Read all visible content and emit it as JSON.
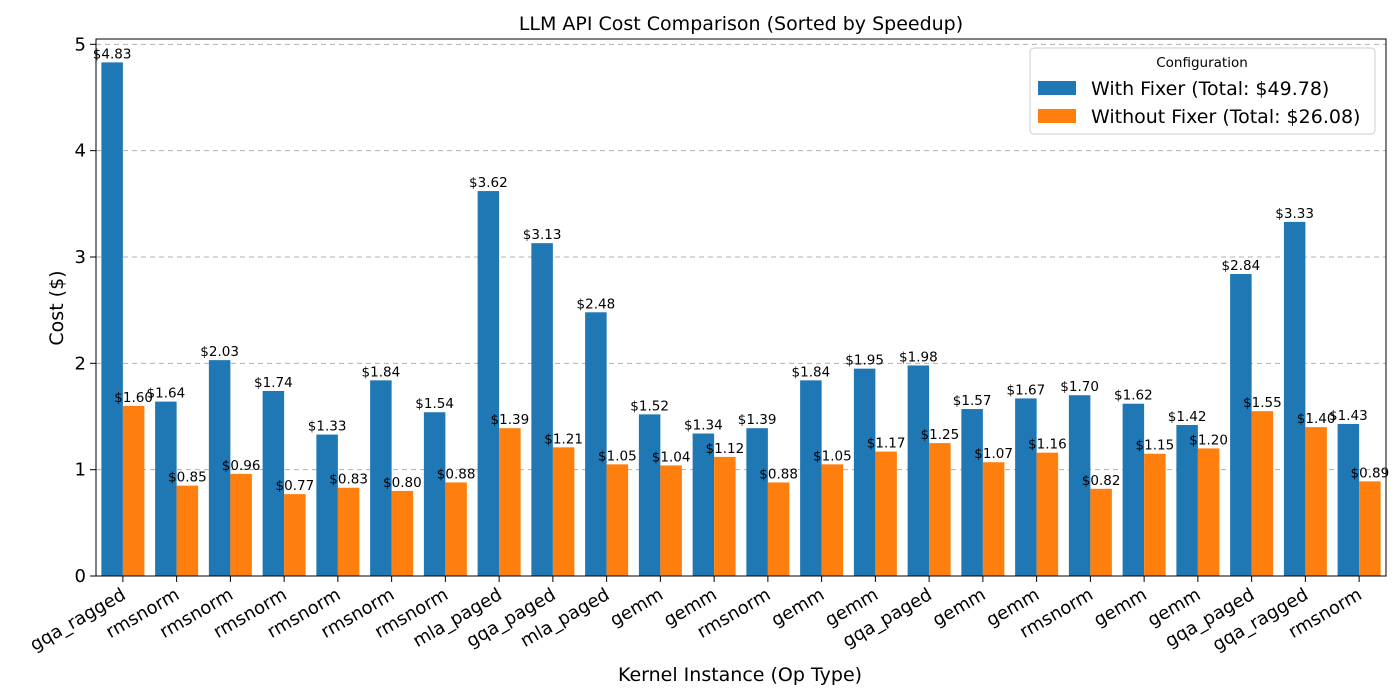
{
  "chart_data": {
    "type": "bar",
    "title": "LLM API Cost Comparison (Sorted by Speedup)",
    "xlabel": "Kernel Instance (Op Type)",
    "ylabel": "Cost ($)",
    "ylim": [
      0,
      5.05
    ],
    "yticks": [
      0,
      1,
      2,
      3,
      4,
      5
    ],
    "grid": "y-dashed",
    "categories": [
      "gqa_ragged",
      "rmsnorm",
      "rmsnorm",
      "rmsnorm",
      "rmsnorm",
      "rmsnorm",
      "rmsnorm",
      "mla_paged",
      "gqa_paged",
      "mla_paged",
      "gemm",
      "gemm",
      "rmsnorm",
      "gemm",
      "gemm",
      "gqa_paged",
      "gemm",
      "gemm",
      "rmsnorm",
      "gemm",
      "gemm",
      "gqa_paged",
      "gqa_ragged",
      "rmsnorm"
    ],
    "series": [
      {
        "name": "With Fixer (Total: $49.78)",
        "color": "#1f77b4",
        "values": [
          4.83,
          1.64,
          2.03,
          1.74,
          1.33,
          1.84,
          1.54,
          3.62,
          3.13,
          2.48,
          1.52,
          1.34,
          1.39,
          1.84,
          1.95,
          1.98,
          1.57,
          1.67,
          1.7,
          1.62,
          1.42,
          2.84,
          3.33,
          1.43
        ],
        "labels": [
          "$4.83",
          "$1.64",
          "$2.03",
          "$1.74",
          "$1.33",
          "$1.84",
          "$1.54",
          "$3.62",
          "$3.13",
          "$2.48",
          "$1.52",
          "$1.34",
          "$1.39",
          "$1.84",
          "$1.95",
          "$1.98",
          "$1.57",
          "$1.67",
          "$1.70",
          "$1.62",
          "$1.42",
          "$2.84",
          "$3.33",
          "$1.43"
        ]
      },
      {
        "name": "Without Fixer (Total: $26.08)",
        "color": "#ff7f0e",
        "values": [
          1.6,
          0.85,
          0.96,
          0.77,
          0.83,
          0.8,
          0.88,
          1.39,
          1.21,
          1.05,
          1.04,
          1.12,
          0.88,
          1.05,
          1.17,
          1.25,
          1.07,
          1.16,
          0.82,
          1.15,
          1.2,
          1.55,
          1.4,
          0.89
        ],
        "labels": [
          "$1.60",
          "$0.85",
          "$0.96",
          "$0.77",
          "$0.83",
          "$0.80",
          "$0.88",
          "$1.39",
          "$1.21",
          "$1.05",
          "$1.04",
          "$1.12",
          "$0.88",
          "$1.05",
          "$1.17",
          "$1.25",
          "$1.07",
          "$1.16",
          "$0.82",
          "$1.15",
          "$1.20",
          "$1.55",
          "$1.40",
          "$0.89"
        ]
      }
    ],
    "legend": {
      "title": "Configuration",
      "placement": "top-right"
    }
  }
}
